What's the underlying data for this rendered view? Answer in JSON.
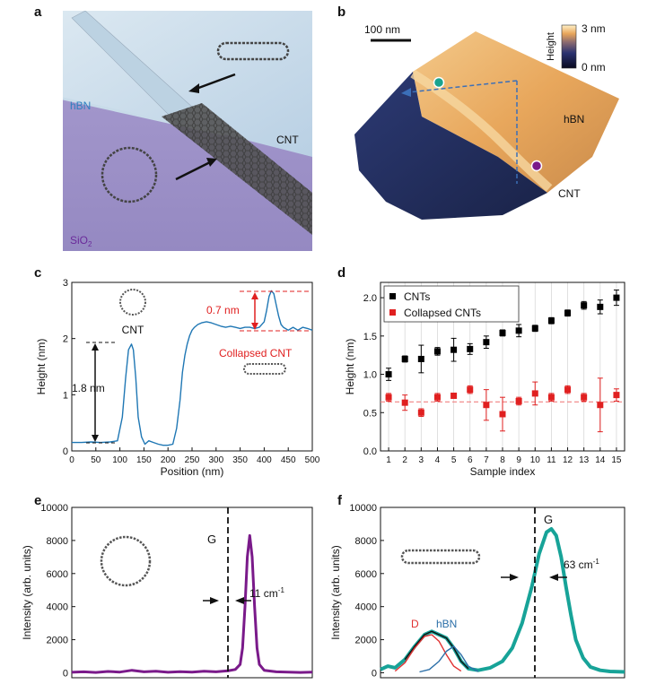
{
  "panels": {
    "a": {
      "letter": "a",
      "labels": {
        "hbn": "hBN",
        "cnt": "CNT",
        "sio2_main": "SiO",
        "sio2_sub": "2"
      }
    },
    "b": {
      "letter": "b",
      "scalebar": "100 nm",
      "colorbar_title": "Height",
      "colorbar_max": "3 nm",
      "colorbar_min": "0 nm",
      "labels": {
        "hbn": "hBN",
        "cnt": "CNT"
      }
    },
    "c": {
      "letter": "c",
      "labels": {
        "cnt": "CNT",
        "collapsed": "Collapsed CNT",
        "h1": "1.8 nm",
        "h2": "0.7 nm"
      }
    },
    "d": {
      "letter": "d"
    },
    "e": {
      "letter": "e",
      "labels": {
        "g": "G",
        "fwhm_main": "11 cm",
        "fwhm_sup": "-1"
      }
    },
    "f": {
      "letter": "f",
      "labels": {
        "g": "G",
        "d": "D",
        "hbn": "hBN",
        "fwhm_main": "63 cm",
        "fwhm_sup": "-1"
      }
    }
  },
  "chart_data": [
    {
      "id": "c",
      "type": "line",
      "xlabel": "Position (nm)",
      "ylabel": "Height (nm)",
      "xlim": [
        0,
        500
      ],
      "ylim": [
        0,
        3
      ],
      "xticks": [
        0,
        50,
        100,
        150,
        200,
        250,
        300,
        350,
        400,
        450,
        500
      ],
      "yticks": [
        0,
        1,
        2,
        3
      ],
      "series": [
        {
          "color": "#1f77b4",
          "x": [
            0,
            20,
            40,
            60,
            80,
            95,
            105,
            112,
            118,
            124,
            128,
            133,
            138,
            145,
            152,
            160,
            170,
            180,
            190,
            200,
            210,
            218,
            225,
            230,
            235,
            240,
            245,
            250,
            255,
            262,
            270,
            280,
            290,
            300,
            310,
            320,
            330,
            340,
            350,
            360,
            370,
            380,
            390,
            400,
            405,
            410,
            415,
            420,
            425,
            430,
            435,
            440,
            450,
            460,
            470,
            480,
            490,
            500
          ],
          "y": [
            0.15,
            0.15,
            0.16,
            0.15,
            0.16,
            0.18,
            0.6,
            1.3,
            1.8,
            1.9,
            1.8,
            1.3,
            0.6,
            0.25,
            0.12,
            0.18,
            0.15,
            0.12,
            0.1,
            0.1,
            0.12,
            0.4,
            0.9,
            1.4,
            1.7,
            1.9,
            2.05,
            2.15,
            2.2,
            2.25,
            2.28,
            2.3,
            2.28,
            2.25,
            2.22,
            2.2,
            2.22,
            2.2,
            2.18,
            2.2,
            2.2,
            2.18,
            2.2,
            2.3,
            2.5,
            2.75,
            2.85,
            2.8,
            2.6,
            2.4,
            2.25,
            2.2,
            2.15,
            2.2,
            2.15,
            2.2,
            2.18,
            2.15
          ]
        }
      ]
    },
    {
      "id": "d",
      "type": "scatter",
      "xlabel": "Sample index",
      "ylabel": "Height (nm)",
      "xlim": [
        0.5,
        15.5
      ],
      "ylim": [
        0,
        2.2
      ],
      "xticks": [
        1,
        2,
        3,
        4,
        5,
        6,
        7,
        8,
        9,
        10,
        11,
        12,
        13,
        14,
        15
      ],
      "yticks": [
        0.0,
        0.5,
        1.0,
        1.5,
        2.0
      ],
      "legend_position": "top-left",
      "reference_line_y": 0.64,
      "series": [
        {
          "name": "CNTs",
          "color": "#000000",
          "x": [
            1,
            2,
            3,
            4,
            5,
            6,
            7,
            8,
            9,
            10,
            11,
            12,
            13,
            14,
            15
          ],
          "y": [
            1.0,
            1.2,
            1.2,
            1.3,
            1.32,
            1.33,
            1.42,
            1.54,
            1.57,
            1.6,
            1.7,
            1.8,
            1.9,
            1.88,
            2.0
          ],
          "err": [
            0.08,
            0.04,
            0.18,
            0.05,
            0.15,
            0.07,
            0.08,
            0.04,
            0.08,
            0.04,
            0.04,
            0.04,
            0.05,
            0.09,
            0.1
          ]
        },
        {
          "name": "Collapsed CNTs",
          "color": "#e02020",
          "x": [
            1,
            2,
            3,
            4,
            5,
            6,
            7,
            8,
            9,
            10,
            11,
            12,
            13,
            14,
            15
          ],
          "y": [
            0.7,
            0.63,
            0.5,
            0.7,
            0.72,
            0.8,
            0.6,
            0.48,
            0.65,
            0.75,
            0.7,
            0.8,
            0.7,
            0.6,
            0.73
          ],
          "err": [
            0.05,
            0.1,
            0.05,
            0.05,
            0.03,
            0.05,
            0.2,
            0.22,
            0.05,
            0.15,
            0.05,
            0.05,
            0.05,
            0.35,
            0.08
          ]
        }
      ]
    },
    {
      "id": "e",
      "type": "line",
      "ylabel": "Intensity (arb. units)",
      "ylim": [
        -300,
        10000
      ],
      "yticks": [
        0,
        2000,
        4000,
        6000,
        8000,
        10000
      ],
      "series": [
        {
          "color": "#7a1a8a",
          "x": [
            0,
            0.05,
            0.1,
            0.15,
            0.2,
            0.25,
            0.3,
            0.35,
            0.4,
            0.45,
            0.5,
            0.55,
            0.6,
            0.65,
            0.68,
            0.7,
            0.71,
            0.72,
            0.73,
            0.74,
            0.75,
            0.76,
            0.77,
            0.78,
            0.8,
            0.85,
            0.9,
            0.95,
            1.0
          ],
          "y": [
            30,
            60,
            20,
            80,
            40,
            150,
            60,
            90,
            30,
            70,
            40,
            90,
            60,
            120,
            200,
            500,
            1500,
            4000,
            7000,
            8300,
            7000,
            4000,
            1500,
            500,
            150,
            60,
            40,
            20,
            40
          ]
        }
      ]
    },
    {
      "id": "f",
      "type": "line",
      "ylabel": "Intensity (arb. units)",
      "ylim": [
        -300,
        10000
      ],
      "yticks": [
        0,
        2000,
        4000,
        6000,
        8000,
        10000
      ],
      "series": [
        {
          "color": "#17a398",
          "x": [
            0,
            0.03,
            0.06,
            0.1,
            0.14,
            0.18,
            0.21,
            0.24,
            0.27,
            0.3,
            0.33,
            0.36,
            0.4,
            0.45,
            0.5,
            0.54,
            0.58,
            0.62,
            0.65,
            0.68,
            0.7,
            0.72,
            0.74,
            0.76,
            0.78,
            0.8,
            0.83,
            0.86,
            0.9,
            0.94,
            1.0
          ],
          "y": [
            200,
            400,
            300,
            800,
            1600,
            2300,
            2500,
            2300,
            2100,
            1500,
            700,
            250,
            150,
            300,
            700,
            1500,
            3000,
            5200,
            7200,
            8500,
            8700,
            8300,
            7000,
            5200,
            3500,
            2000,
            900,
            350,
            150,
            80,
            50
          ]
        },
        {
          "color": "#111111",
          "x": [
            0.1,
            0.14,
            0.18,
            0.21,
            0.24,
            0.27,
            0.3,
            0.33,
            0.36
          ],
          "y": [
            800,
            1600,
            2300,
            2500,
            2300,
            2100,
            1500,
            700,
            250
          ]
        },
        {
          "color": "#e03030",
          "x": [
            0.06,
            0.1,
            0.14,
            0.18,
            0.21,
            0.24,
            0.27,
            0.3,
            0.33
          ],
          "y": [
            100,
            600,
            1500,
            2200,
            2300,
            1900,
            1100,
            400,
            100
          ]
        },
        {
          "color": "#2b6fa8",
          "x": [
            0.16,
            0.2,
            0.24,
            0.27,
            0.3,
            0.33,
            0.36,
            0.4
          ],
          "y": [
            50,
            200,
            700,
            1300,
            1600,
            1100,
            400,
            80
          ]
        }
      ]
    }
  ]
}
